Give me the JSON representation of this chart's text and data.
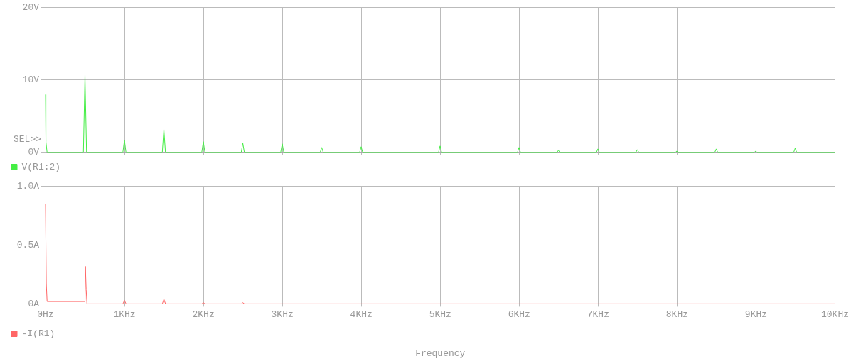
{
  "chart_data": [
    {
      "type": "line",
      "xlim": [
        0,
        10
      ],
      "xticks": [
        0,
        1,
        2,
        3,
        4,
        5,
        6,
        7,
        8,
        9,
        10
      ],
      "ylim": [
        0,
        20
      ],
      "yticks": [
        {
          "value": 0,
          "label": "0V"
        },
        {
          "value": 10,
          "label": "10V"
        },
        {
          "value": 20,
          "label": "20V"
        }
      ],
      "tick_labels": "y",
      "grid": true,
      "legend": "bottom left",
      "marker": "none",
      "line_style": "solid",
      "annotations": [
        "SEL>>"
      ],
      "series": [
        {
          "name": "V(R1:2)",
          "color": "#44ee44",
          "x": [
            0,
            0.005,
            0.02,
            0.48,
            0.5,
            0.52,
            0.98,
            1,
            1.02,
            1.48,
            1.5,
            1.52,
            1.98,
            2,
            2.02,
            2.48,
            2.5,
            2.52,
            2.98,
            3,
            3.02,
            3.48,
            3.5,
            3.52,
            3.98,
            4,
            4.02,
            4.98,
            5,
            5.02,
            5.98,
            6,
            6.02,
            6.48,
            6.5,
            6.52,
            6.98,
            7,
            7.02,
            7.48,
            7.5,
            7.52,
            7.98,
            8,
            8.02,
            8.48,
            8.5,
            8.52,
            8.98,
            9,
            9.02,
            9.48,
            9.5,
            9.52,
            10
          ],
          "values": [
            8,
            1.5,
            0,
            0,
            10.7,
            0,
            0,
            1.7,
            0,
            0,
            3.2,
            0,
            0,
            1.5,
            0,
            0,
            1.3,
            0,
            0,
            1.2,
            0,
            0,
            0.7,
            0,
            0,
            0.8,
            0,
            0,
            0.9,
            0,
            0,
            0.7,
            0,
            0,
            0.3,
            0,
            0,
            0.5,
            0,
            0,
            0.4,
            0,
            0,
            0.2,
            0,
            0,
            0.5,
            0,
            0,
            0.2,
            0,
            0,
            0.6,
            0,
            0
          ]
        }
      ]
    },
    {
      "type": "line",
      "xlim": [
        0,
        10
      ],
      "xticks": [
        {
          "value": 0,
          "label": "0Hz"
        },
        {
          "value": 1,
          "label": "1KHz"
        },
        {
          "value": 2,
          "label": "2KHz"
        },
        {
          "value": 3,
          "label": "3KHz"
        },
        {
          "value": 4,
          "label": "4KHz"
        },
        {
          "value": 5,
          "label": "5KHz"
        },
        {
          "value": 6,
          "label": "6KHz"
        },
        {
          "value": 7,
          "label": "7KHz"
        },
        {
          "value": 8,
          "label": "8KHz"
        },
        {
          "value": 9,
          "label": "9KHz"
        },
        {
          "value": 10,
          "label": "10KHz"
        }
      ],
      "ylim": [
        0,
        1
      ],
      "yticks": [
        {
          "value": 0,
          "label": "0A"
        },
        {
          "value": 0.5,
          "label": "0.5A"
        },
        {
          "value": 1,
          "label": "1.0A"
        }
      ],
      "xlabel": "Frequency",
      "grid": true,
      "legend": "bottom left",
      "marker": "none",
      "line_style": "solid",
      "series": [
        {
          "name": "-I(R1)",
          "color": "#ff6666",
          "x": [
            0,
            0.01,
            0.02,
            0.5,
            0.505,
            0.515,
            0.525,
            0.98,
            1,
            1.02,
            1.48,
            1.5,
            1.52,
            1.98,
            2,
            2.02,
            2.48,
            2.5,
            2.52,
            10
          ],
          "values": [
            0.85,
            0.17,
            0.02,
            0.02,
            0.32,
            0.12,
            0,
            0,
            0.03,
            0,
            0,
            0.04,
            0,
            0,
            0.01,
            0,
            0,
            0.01,
            0,
            0
          ]
        }
      ]
    }
  ]
}
